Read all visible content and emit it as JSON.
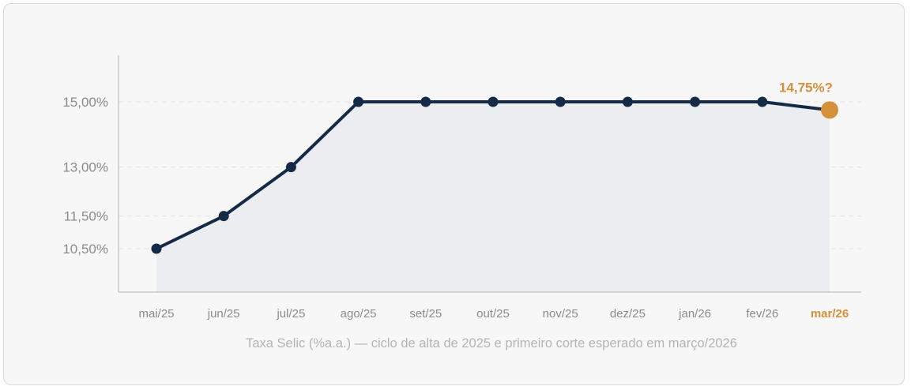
{
  "chart_data": {
    "type": "line",
    "caption": "Taxa Selic (%a.a.) — ciclo de alta de 2025 e primeiro corte esperado em março/2026",
    "categories": [
      "mai/25",
      "jun/25",
      "jul/25",
      "ago/25",
      "set/25",
      "out/25",
      "nov/25",
      "dez/25",
      "jan/26",
      "fev/26",
      "mar/26"
    ],
    "series": [
      {
        "values": [
          10.5,
          11.5,
          13.0,
          15.0,
          15.0,
          15.0,
          15.0,
          15.0,
          15.0,
          15.0,
          14.75
        ]
      }
    ],
    "highlight_index": 10,
    "annotation": "14,75%?",
    "y_tick_values": [
      10.5,
      11.5,
      13.0,
      15.0
    ],
    "y_tick_labels": [
      "10,50%",
      "11,50%",
      "13,00%",
      "15,00%"
    ],
    "grid": "horizontal-dashed",
    "colors": {
      "line": "#142a47",
      "area": "#ecedf0",
      "highlight": "#d4913a"
    }
  }
}
